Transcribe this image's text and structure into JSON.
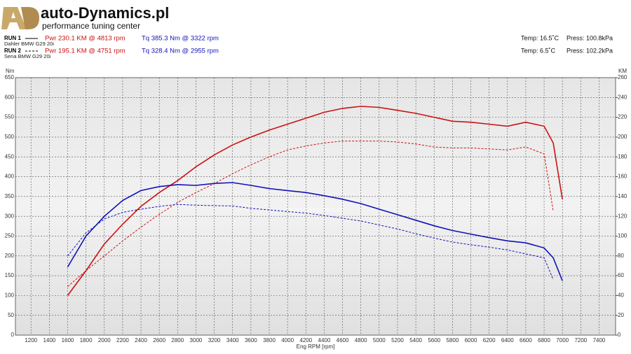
{
  "header": {
    "logo_mark": "AD",
    "brand": "auto-Dynamics.pl",
    "tagline": "performance tuning center"
  },
  "runs": [
    {
      "label": "RUN 1",
      "vehicle": "Dahler  BMW G29 20i",
      "power": "Pwr  230.1 KM @ 4813 rpm",
      "torque": "Tq  385.3 Nm @ 3322 rpm",
      "temp": "Temp: 16.5˚C",
      "press": "Press: 100.8kPa",
      "style": "solid"
    },
    {
      "label": "RUN 2",
      "vehicle": "Sena   BMW G29 20i",
      "power": "Pwr  195.1 KM @ 4751 rpm",
      "torque": "Tq  328.4 Nm @ 2955 rpm",
      "temp": "Temp: 6.5˚C",
      "press": "Press: 102.2kPa",
      "style": "dashed"
    }
  ],
  "chart_data": {
    "type": "line",
    "watermark": "auto-Dynamics.pl",
    "ylabel": "Nm",
    "y2label": "KM",
    "xlabel": "Eng RPM [rpm]",
    "grid": true,
    "x": [
      1600,
      1800,
      2000,
      2200,
      2400,
      2600,
      2800,
      3000,
      3200,
      3400,
      3600,
      3800,
      4000,
      4200,
      4400,
      4600,
      4800,
      5000,
      5200,
      5400,
      5600,
      5800,
      6000,
      6200,
      6400,
      6600,
      6800,
      6900,
      7000
    ],
    "xlim": [
      1030,
      7580
    ],
    "xticks": [
      1200,
      1400,
      1600,
      1800,
      2000,
      2200,
      2400,
      2600,
      2800,
      3000,
      3200,
      3400,
      3600,
      3800,
      4000,
      4200,
      4400,
      4600,
      4800,
      5000,
      5200,
      5400,
      5600,
      5800,
      6000,
      6200,
      6400,
      6600,
      6800,
      7000,
      7200,
      7400
    ],
    "ylim": [
      0,
      650
    ],
    "yticks": [
      0,
      50,
      100,
      150,
      200,
      250,
      300,
      350,
      400,
      450,
      500,
      550,
      600,
      650
    ],
    "y2lim": [
      0,
      260
    ],
    "y2ticks": [
      0,
      20,
      40,
      60,
      80,
      100,
      120,
      140,
      160,
      180,
      200,
      220,
      240,
      260
    ],
    "series": [
      {
        "color": "#cc1111",
        "style": "solid",
        "axis": "y2",
        "values": [
          40,
          65,
          92,
          112,
          130,
          144,
          156,
          170,
          182,
          192,
          200,
          207,
          213,
          219,
          225,
          229,
          231,
          230,
          227,
          224,
          220,
          216,
          215,
          213,
          211,
          215,
          211,
          194,
          137
        ]
      },
      {
        "color": "#cc1111",
        "style": "dashed",
        "axis": "y2",
        "values": [
          49,
          65,
          80,
          95,
          109,
          122,
          134,
          144,
          153,
          163,
          172,
          180,
          187,
          191,
          194,
          196,
          196,
          196,
          195,
          193,
          190,
          189,
          189,
          188,
          187,
          190,
          183,
          125,
          null
        ]
      },
      {
        "color": "#1111bb",
        "style": "solid",
        "axis": "y",
        "values": [
          172,
          250,
          300,
          340,
          365,
          375,
          380,
          378,
          383,
          385,
          378,
          370,
          365,
          360,
          352,
          343,
          332,
          318,
          304,
          290,
          276,
          264,
          255,
          246,
          238,
          233,
          220,
          195,
          137
        ]
      },
      {
        "color": "#1111bb",
        "style": "dashed",
        "axis": "y",
        "values": [
          200,
          258,
          293,
          310,
          318,
          325,
          330,
          328,
          327,
          326,
          320,
          316,
          312,
          308,
          302,
          295,
          288,
          278,
          268,
          256,
          245,
          235,
          228,
          222,
          215,
          205,
          195,
          140,
          null
        ]
      }
    ]
  }
}
